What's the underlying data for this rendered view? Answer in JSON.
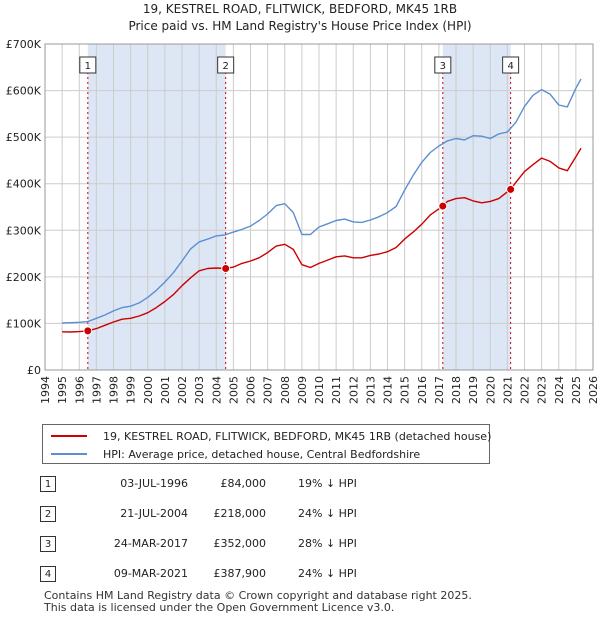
{
  "chart_data": {
    "type": "line",
    "title": "19, KESTREL ROAD, FLITWICK, BEDFORD, MK45 1RB",
    "subtitle": "Price paid vs. HM Land Registry's House Price Index (HPI)",
    "xlim": [
      1994,
      2026
    ],
    "ylim": [
      0,
      700000
    ],
    "x_ticks": [
      1994,
      1995,
      1996,
      1997,
      1998,
      1999,
      2000,
      2001,
      2002,
      2003,
      2004,
      2005,
      2006,
      2007,
      2008,
      2009,
      2010,
      2011,
      2012,
      2013,
      2014,
      2015,
      2016,
      2017,
      2018,
      2019,
      2020,
      2021,
      2022,
      2023,
      2024,
      2025,
      2026
    ],
    "y_ticks": [
      0,
      100000,
      200000,
      300000,
      400000,
      500000,
      600000,
      700000
    ],
    "y_tick_labels": [
      "£0",
      "£100K",
      "£200K",
      "£300K",
      "£400K",
      "£500K",
      "£600K",
      "£700K"
    ],
    "grid": true,
    "series": [
      {
        "name": "19, KESTREL ROAD, FLITWICK, BEDFORD, MK45 1RB (detached house)",
        "color": "#cc0000",
        "x": [
          1995.0,
          1995.5,
          1996.0,
          1996.5,
          1997.0,
          1997.5,
          1998.0,
          1998.5,
          1999.0,
          1999.5,
          2000.0,
          2000.5,
          2001.0,
          2001.5,
          2002.0,
          2002.5,
          2003.0,
          2003.5,
          2004.0,
          2004.55,
          2005.0,
          2005.5,
          2006.0,
          2006.5,
          2007.0,
          2007.5,
          2008.0,
          2008.5,
          2009.0,
          2009.5,
          2010.0,
          2010.5,
          2011.0,
          2011.5,
          2012.0,
          2012.5,
          2013.0,
          2013.5,
          2014.0,
          2014.5,
          2015.0,
          2015.5,
          2016.0,
          2016.5,
          2017.23,
          2017.5,
          2018.0,
          2018.5,
          2019.0,
          2019.5,
          2020.0,
          2020.5,
          2021.19,
          2021.5,
          2022.0,
          2022.5,
          2023.0,
          2023.5,
          2024.0,
          2024.5,
          2025.0,
          2025.3
        ],
        "values": [
          82000,
          81500,
          82500,
          84000,
          89000,
          96000,
          103000,
          109000,
          111000,
          116000,
          123000,
          134000,
          147000,
          162000,
          181000,
          198000,
          213000,
          218000,
          219000,
          218000,
          221000,
          229000,
          234000,
          241000,
          252000,
          266000,
          270000,
          259000,
          226000,
          220000,
          229000,
          236000,
          243000,
          245000,
          241000,
          241000,
          246000,
          249000,
          254000,
          263000,
          281000,
          296000,
          313000,
          333000,
          352000,
          362000,
          368000,
          370000,
          363000,
          359000,
          362000,
          368000,
          387900,
          403000,
          426000,
          441000,
          455000,
          448000,
          434000,
          428000,
          458000,
          476000
        ]
      },
      {
        "name": "HPI: Average price, detached house, Central Bedfordshire",
        "color": "#5b8fd0",
        "x": [
          1995.0,
          1995.5,
          1996.0,
          1996.5,
          1997.0,
          1997.5,
          1998.0,
          1998.5,
          1999.0,
          1999.5,
          2000.0,
          2000.5,
          2001.0,
          2001.5,
          2002.0,
          2002.5,
          2003.0,
          2003.5,
          2004.0,
          2004.5,
          2005.0,
          2005.5,
          2006.0,
          2006.5,
          2007.0,
          2007.5,
          2008.0,
          2008.5,
          2009.0,
          2009.5,
          2010.0,
          2010.5,
          2011.0,
          2011.5,
          2012.0,
          2012.5,
          2013.0,
          2013.5,
          2014.0,
          2014.5,
          2015.0,
          2015.5,
          2016.0,
          2016.5,
          2017.0,
          2017.5,
          2018.0,
          2018.5,
          2019.0,
          2019.5,
          2020.0,
          2020.5,
          2021.0,
          2021.5,
          2022.0,
          2022.5,
          2023.0,
          2023.5,
          2024.0,
          2024.5,
          2025.0,
          2025.3
        ],
        "values": [
          101000,
          101500,
          102500,
          104000,
          111000,
          118000,
          127000,
          134000,
          137000,
          144000,
          156000,
          171000,
          189000,
          209000,
          234000,
          260000,
          275000,
          281000,
          288000,
          290000,
          296000,
          302000,
          309000,
          321000,
          335000,
          353000,
          357000,
          338000,
          291000,
          291000,
          307000,
          314000,
          321000,
          324000,
          318000,
          317000,
          322000,
          329000,
          338000,
          351000,
          386000,
          418000,
          446000,
          467000,
          481000,
          492000,
          497000,
          494000,
          503000,
          502000,
          497000,
          507000,
          511000,
          532000,
          566000,
          590000,
          602000,
          592000,
          569000,
          565000,
          605000,
          625000
        ]
      }
    ],
    "sales": [
      {
        "num": "1",
        "x": 1996.5,
        "value": 84000
      },
      {
        "num": "2",
        "x": 2004.55,
        "value": 218000
      },
      {
        "num": "3",
        "x": 2017.23,
        "value": 352000
      },
      {
        "num": "4",
        "x": 2021.19,
        "value": 387900
      }
    ]
  },
  "legend": {
    "property_label": "19, KESTREL ROAD, FLITWICK, BEDFORD, MK45 1RB (detached house)",
    "hpi_label": "HPI: Average price, detached house, Central Bedfordshire"
  },
  "sales_table": [
    {
      "num": "1",
      "date": "03-JUL-1996",
      "price": "£84,000",
      "hpi": "19% ↓ HPI"
    },
    {
      "num": "2",
      "date": "21-JUL-2004",
      "price": "£218,000",
      "hpi": "24% ↓ HPI"
    },
    {
      "num": "3",
      "date": "24-MAR-2017",
      "price": "£352,000",
      "hpi": "28% ↓ HPI"
    },
    {
      "num": "4",
      "date": "09-MAR-2021",
      "price": "£387,900",
      "hpi": "24% ↓ HPI"
    }
  ],
  "footer": {
    "line1": "Contains HM Land Registry data © Crown copyright and database right 2025.",
    "line2": "This data is licensed under the Open Government Licence v3.0."
  },
  "colors": {
    "property": "#cc0000",
    "hpi": "#5b8fd0",
    "shade": "#dde6f5"
  }
}
